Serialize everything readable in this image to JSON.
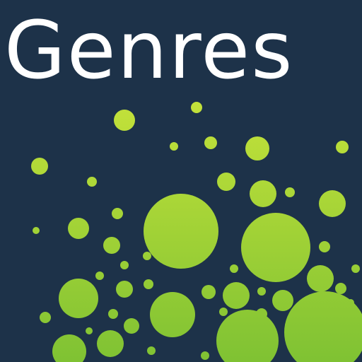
{
  "tile": {
    "title": "Genres",
    "colors": {
      "background": "#1d3249",
      "title": "#ffffff",
      "bubble_light": "#c4e23a",
      "bubble_dark": "#7fc233"
    }
  }
}
